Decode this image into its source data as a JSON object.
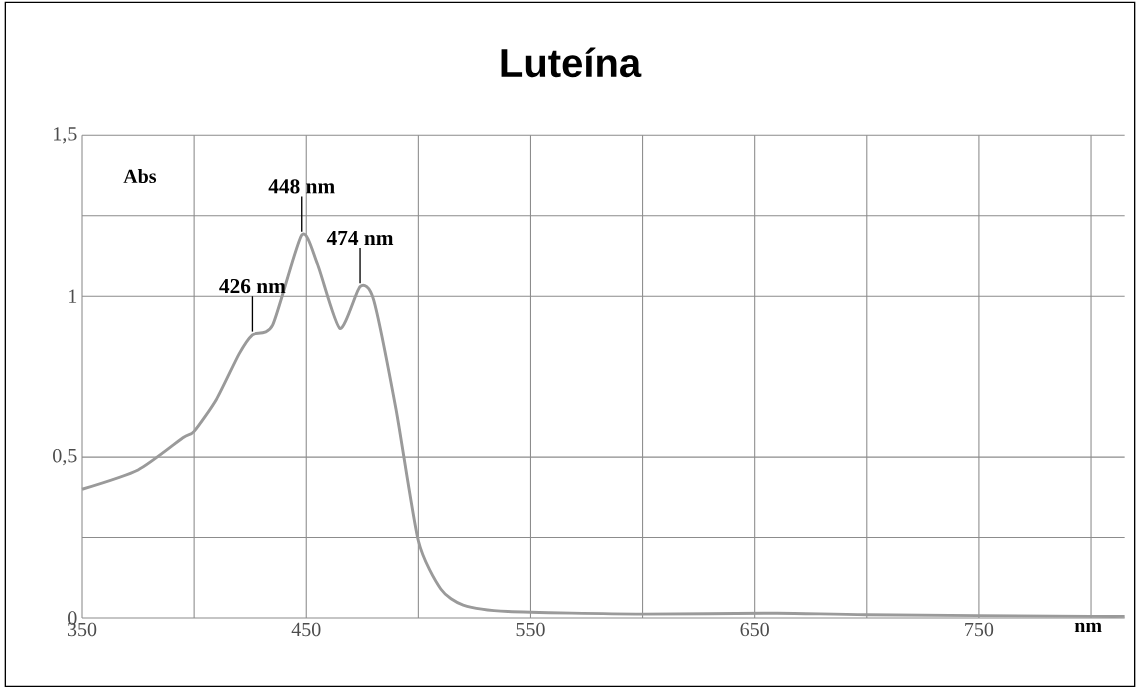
{
  "chart_data": {
    "type": "line",
    "title": "Luteína",
    "xlabel": "nm",
    "ylabel": "Abs",
    "x": [
      350,
      375,
      395,
      400,
      410,
      420,
      426,
      435,
      448,
      455,
      465,
      474,
      480,
      490,
      500,
      510,
      520,
      540,
      600,
      660,
      700,
      800,
      815
    ],
    "series": [
      {
        "color": "#9a9a9a",
        "values": [
          0.4,
          0.46,
          0.56,
          0.58,
          0.68,
          0.82,
          0.88,
          0.91,
          1.19,
          1.1,
          0.9,
          1.03,
          0.99,
          0.65,
          0.24,
          0.09,
          0.04,
          0.02,
          0.012,
          0.015,
          0.01,
          0.005,
          0.005
        ]
      }
    ],
    "xlim": [
      350,
      815
    ],
    "xticks": [
      350,
      {
        "value": 400,
        "label": null
      },
      450,
      {
        "value": 500,
        "label": null
      },
      550,
      {
        "value": 600,
        "label": null
      },
      650,
      {
        "value": 700,
        "label": null
      },
      750,
      {
        "value": 800,
        "label": null
      }
    ],
    "ylim": [
      0,
      1.5
    ],
    "yticks": [
      0,
      {
        "value": 0.25,
        "label": null
      },
      {
        "value": 0.5,
        "label": "0,5"
      },
      1,
      {
        "value": 1.25,
        "label": null
      },
      {
        "value": 1.5,
        "label": "1,5"
      }
    ],
    "grid": true,
    "annotations": [
      {
        "text": "426 nm",
        "x": 426,
        "y": 0.88
      },
      {
        "text": "448 nm",
        "x": 448,
        "y": 1.19
      },
      {
        "text": "474 nm",
        "x": 474,
        "y": 1.03
      }
    ]
  }
}
